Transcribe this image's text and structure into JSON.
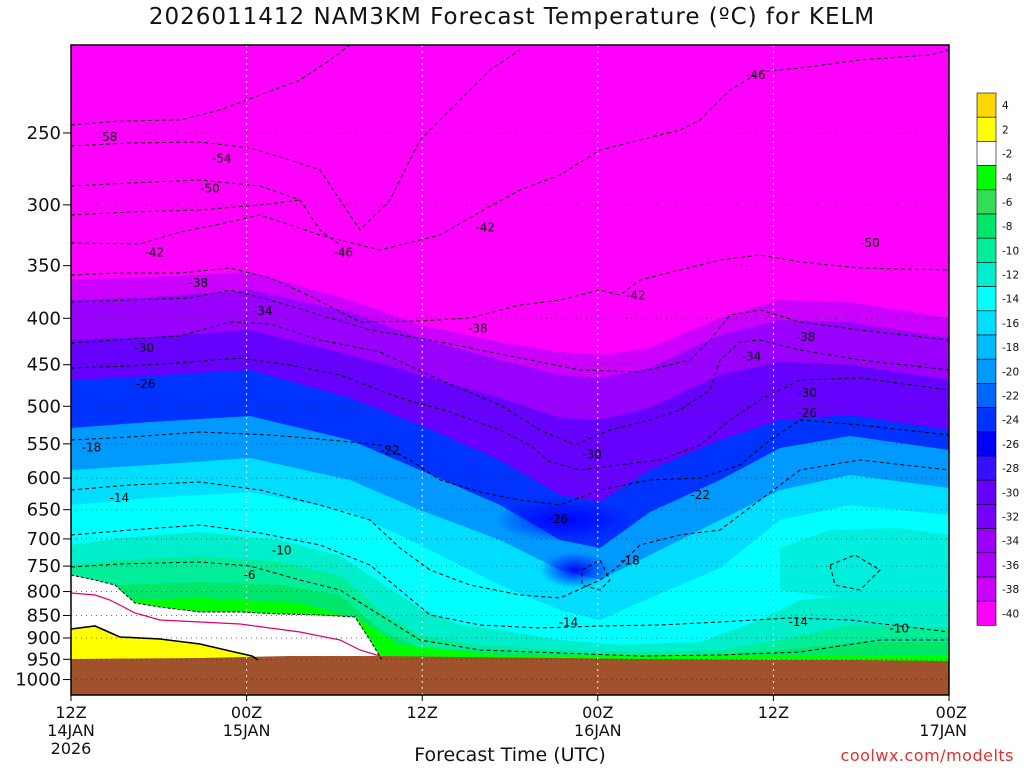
{
  "title": "2026011412 NAM3KM Forecast Temperature (ºC) for KELM",
  "x_axis_title": "Forecast Time (UTC)",
  "credit": "coolwx.com/modelts",
  "colors": {
    "ground": "#a0522d",
    "freezing_line": "#000000",
    "isotherm_line": "#000000",
    "warm_layer_line": "#e0006e"
  },
  "chart_data": {
    "type": "heatmap",
    "title": "2026011412 NAM3KM Forecast Temperature (ºC) for KELM",
    "xlabel": "Forecast Time (UTC)",
    "ylabel": "",
    "x_ticks": [
      {
        "lines": [
          "12Z",
          "14JAN",
          "2026"
        ],
        "hour": 0
      },
      {
        "lines": [
          "00Z",
          "15JAN"
        ],
        "hour": 12
      },
      {
        "lines": [
          "12Z"
        ],
        "hour": 24
      },
      {
        "lines": [
          "00Z",
          "16JAN"
        ],
        "hour": 36
      },
      {
        "lines": [
          "12Z"
        ],
        "hour": 48
      },
      {
        "lines": [
          "00Z",
          "17JAN"
        ],
        "hour": 60
      }
    ],
    "xlim": [
      0,
      60
    ],
    "y_ticks": [
      250,
      300,
      350,
      400,
      450,
      500,
      550,
      600,
      650,
      700,
      750,
      800,
      850,
      900,
      950,
      1000
    ],
    "ylim": [
      200,
      1040
    ],
    "y_scale": "log-pressure",
    "grid": true,
    "colorbar": {
      "placement": "right",
      "levels": [
        4,
        2,
        -2,
        -4,
        -6,
        -8,
        -10,
        -12,
        -14,
        -16,
        -18,
        -20,
        -22,
        -24,
        -26,
        -28,
        -30,
        -32,
        -34,
        -36,
        -38,
        -40
      ],
      "colors": [
        "#ffd700",
        "#ffff00",
        "#ffffff",
        "#00ff00",
        "#33dd55",
        "#00e66b",
        "#00ee99",
        "#00eecc",
        "#00ffff",
        "#00ddff",
        "#00bbff",
        "#0099ff",
        "#0066ff",
        "#0033ff",
        "#0000ff",
        "#3311ff",
        "#6600ff",
        "#7700ff",
        "#9900ff",
        "#aa00ff",
        "#cc00ff",
        "#ff00ff"
      ]
    },
    "contour_labels": [
      {
        "text": "-58",
        "hour": 2.5,
        "p": 253
      },
      {
        "text": "-54",
        "hour": 10.3,
        "p": 267
      },
      {
        "text": "-50",
        "hour": 9.5,
        "p": 288
      },
      {
        "text": "-46",
        "hour": 46.8,
        "p": 216
      },
      {
        "text": "-42",
        "hour": 28.3,
        "p": 318
      },
      {
        "text": "-42",
        "hour": 5.7,
        "p": 339
      },
      {
        "text": "-46",
        "hour": 18.6,
        "p": 339
      },
      {
        "text": "-50",
        "hour": 54.6,
        "p": 331
      },
      {
        "text": "-38",
        "hour": 8.7,
        "p": 366
      },
      {
        "text": "-42",
        "hour": 38.6,
        "p": 378
      },
      {
        "text": "-34",
        "hour": 13.1,
        "p": 393
      },
      {
        "text": "-38",
        "hour": 27.8,
        "p": 411
      },
      {
        "text": "-38",
        "hour": 50.2,
        "p": 420
      },
      {
        "text": "-30",
        "hour": 5.0,
        "p": 432
      },
      {
        "text": "-34",
        "hour": 46.5,
        "p": 441
      },
      {
        "text": "-26",
        "hour": 5.1,
        "p": 473
      },
      {
        "text": "-30",
        "hour": 50.3,
        "p": 484
      },
      {
        "text": "-26",
        "hour": 50.3,
        "p": 509
      },
      {
        "text": "-18",
        "hour": 1.4,
        "p": 556
      },
      {
        "text": "-22",
        "hour": 21.8,
        "p": 560
      },
      {
        "text": "-30",
        "hour": 35.6,
        "p": 566
      },
      {
        "text": "-14",
        "hour": 3.3,
        "p": 632
      },
      {
        "text": "-22",
        "hour": 43.0,
        "p": 627
      },
      {
        "text": "-26",
        "hour": 33.3,
        "p": 666
      },
      {
        "text": "-10",
        "hour": 14.4,
        "p": 722
      },
      {
        "text": "-18",
        "hour": 38.2,
        "p": 740
      },
      {
        "text": "-6",
        "hour": 12.2,
        "p": 768
      },
      {
        "text": "-14",
        "hour": 34.0,
        "p": 866
      },
      {
        "text": "-14",
        "hour": 49.7,
        "p": 865
      },
      {
        "text": "-10",
        "hour": 56.6,
        "p": 880
      }
    ]
  }
}
